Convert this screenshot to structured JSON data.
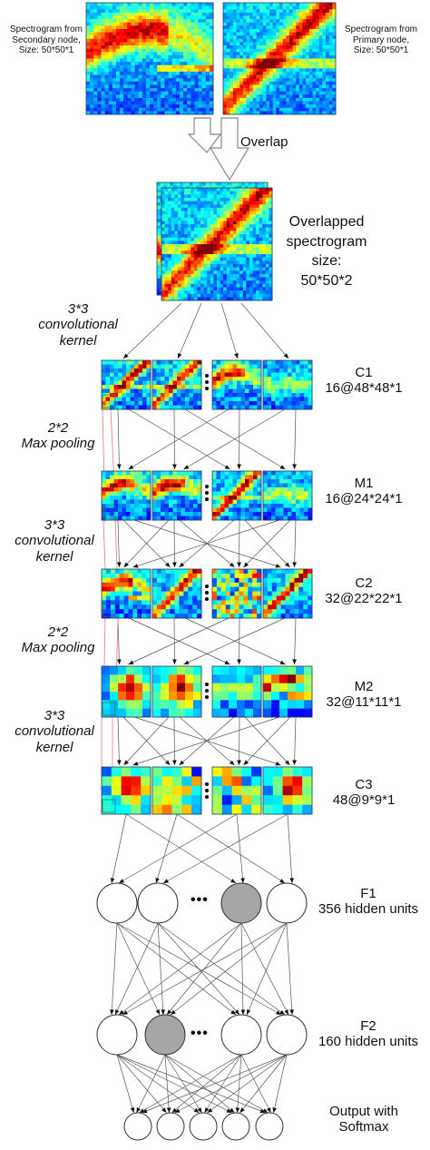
{
  "inputs": {
    "secondary_label": [
      "Spectrogram from",
      "Secondary node,",
      "Size: 50*50*1"
    ],
    "primary_label": [
      "Spectrogram from",
      "Primary node,",
      "Size: 50*50*1"
    ],
    "overlap_label": "Overlap"
  },
  "overlapped": {
    "label": [
      "Overlapped",
      "spectrogram",
      "size:",
      "50*50*2"
    ]
  },
  "operations": [
    {
      "id": "conv1",
      "lines": [
        "3*3",
        "convolutional",
        "kernel"
      ]
    },
    {
      "id": "pool1",
      "lines": [
        "2*2",
        "Max pooling"
      ]
    },
    {
      "id": "conv2",
      "lines": [
        "3*3",
        "convolutional",
        "kernel"
      ]
    },
    {
      "id": "pool2",
      "lines": [
        "2*2",
        "Max pooling"
      ]
    },
    {
      "id": "conv3",
      "lines": [
        "3*3",
        "convolutional",
        "kernel"
      ]
    }
  ],
  "layers": [
    {
      "id": "C1",
      "name": "C1",
      "shape": "16@48*48*1",
      "grid": 12
    },
    {
      "id": "M1",
      "name": "M1",
      "shape": "16@24*24*1",
      "grid": 12
    },
    {
      "id": "C2",
      "name": "C2",
      "shape": "32@22*22*1",
      "grid": 11
    },
    {
      "id": "M2",
      "name": "M2",
      "shape": "32@11*11*1",
      "grid": 6
    },
    {
      "id": "C3",
      "name": "C3",
      "shape": "48@9*9*1",
      "grid": 5
    }
  ],
  "dense": [
    {
      "id": "F1",
      "name": "F1",
      "desc": "356 hidden units",
      "ellipsis": "•••"
    },
    {
      "id": "F2",
      "name": "F2",
      "desc": "160 hidden units",
      "ellipsis": "•••"
    }
  ],
  "output": {
    "lines": [
      "Output with",
      "Softmax"
    ]
  },
  "colors": {
    "node_gray": "#a6a6a6",
    "node_white": "#ffffff",
    "line": "#555555",
    "pink_line": "#e08888"
  }
}
